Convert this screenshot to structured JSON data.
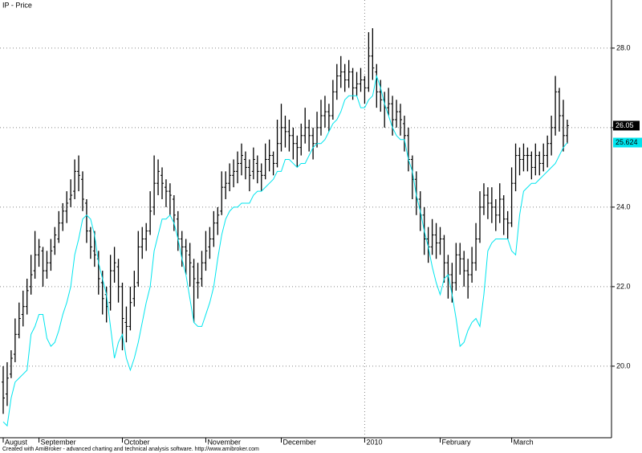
{
  "chart_data": {
    "type": "ohlc",
    "title": "IP - Price",
    "footer": "Created with AmiBroker - advanced charting and technical analysis software. http://www.amibroker.com",
    "bar_color": "#000000",
    "line_color": "#00e5ee",
    "grid": true,
    "ylim": [
      18.2,
      29.21
    ],
    "yticks": [
      {
        "value": 20,
        "label": "20.0"
      },
      {
        "value": 22,
        "label": "22.0"
      },
      {
        "value": 24,
        "label": "24.0"
      },
      {
        "value": 26,
        "label": "26.0"
      },
      {
        "value": 28,
        "label": "28.0"
      }
    ],
    "categories": [
      "August",
      null,
      null,
      null,
      null,
      null,
      null,
      null,
      null,
      "September",
      null,
      null,
      null,
      null,
      null,
      null,
      null,
      null,
      null,
      null,
      null,
      null,
      null,
      null,
      null,
      null,
      null,
      null,
      null,
      null,
      "October",
      null,
      null,
      null,
      null,
      null,
      null,
      null,
      null,
      null,
      null,
      null,
      null,
      null,
      null,
      null,
      null,
      null,
      null,
      null,
      null,
      "November",
      null,
      null,
      null,
      null,
      null,
      null,
      null,
      null,
      null,
      null,
      null,
      null,
      null,
      null,
      null,
      null,
      null,
      null,
      "December",
      null,
      null,
      null,
      null,
      null,
      null,
      null,
      null,
      null,
      null,
      null,
      null,
      null,
      null,
      null,
      null,
      null,
      null,
      null,
      null,
      "2010",
      null,
      null,
      null,
      null,
      null,
      null,
      null,
      null,
      null,
      null,
      null,
      null,
      null,
      null,
      null,
      null,
      null,
      null,
      "February",
      null,
      null,
      null,
      null,
      null,
      null,
      null,
      null,
      null,
      null,
      null,
      null,
      null,
      null,
      null,
      null,
      null,
      "March",
      null,
      null,
      null,
      null,
      null,
      null,
      null,
      null,
      null,
      null,
      null,
      null,
      null,
      null
    ],
    "bars": [
      [
        19.6,
        20.0,
        18.8,
        19.2
      ],
      [
        19.3,
        20.1,
        19.0,
        19.7
      ],
      [
        19.8,
        20.4,
        19.7,
        20.2
      ],
      [
        20.3,
        21.2,
        20.1,
        20.8
      ],
      [
        20.8,
        21.6,
        20.7,
        21.2
      ],
      [
        21.3,
        21.9,
        21.0,
        21.5
      ],
      [
        21.5,
        22.2,
        21.3,
        21.9
      ],
      [
        22.0,
        22.8,
        21.8,
        22.3
      ],
      [
        22.4,
        23.4,
        22.2,
        22.8
      ],
      [
        22.8,
        23.2,
        22.5,
        23.0
      ],
      [
        22.9,
        23.0,
        22.0,
        22.4
      ],
      [
        22.4,
        22.9,
        22.2,
        22.6
      ],
      [
        22.6,
        23.2,
        22.4,
        22.9
      ],
      [
        23.0,
        23.5,
        22.8,
        23.3
      ],
      [
        23.2,
        23.9,
        23.1,
        23.6
      ],
      [
        23.6,
        24.1,
        23.4,
        23.9
      ],
      [
        23.9,
        24.4,
        23.6,
        24.1
      ],
      [
        24.2,
        24.7,
        24.0,
        24.3
      ],
      [
        24.4,
        25.2,
        24.2,
        24.9
      ],
      [
        24.9,
        25.3,
        24.4,
        24.8
      ],
      [
        24.7,
        24.9,
        23.9,
        24.2
      ],
      [
        24.1,
        24.2,
        23.1,
        23.4
      ],
      [
        23.4,
        23.5,
        22.7,
        23.0
      ],
      [
        22.9,
        23.4,
        22.5,
        22.8
      ],
      [
        22.7,
        22.9,
        21.8,
        22.2
      ],
      [
        22.1,
        22.4,
        21.3,
        21.7
      ],
      [
        21.8,
        22.0,
        21.1,
        21.5
      ],
      [
        21.6,
        22.8,
        21.4,
        22.4
      ],
      [
        22.4,
        23.0,
        22.1,
        22.6
      ],
      [
        22.5,
        22.7,
        21.6,
        22.0
      ],
      [
        22.0,
        22.1,
        20.4,
        21.2
      ],
      [
        21.1,
        21.5,
        20.6,
        21.0
      ],
      [
        21.0,
        22.0,
        20.9,
        21.6
      ],
      [
        21.7,
        22.4,
        21.5,
        22.0
      ],
      [
        22.1,
        23.4,
        22.0,
        23.0
      ],
      [
        23.0,
        23.5,
        22.7,
        23.2
      ],
      [
        23.2,
        23.6,
        22.9,
        23.4
      ],
      [
        23.4,
        24.4,
        23.3,
        23.9
      ],
      [
        24.0,
        25.3,
        23.8,
        24.6
      ],
      [
        24.6,
        25.2,
        24.3,
        24.9
      ],
      [
        24.8,
        25.0,
        24.2,
        24.6
      ],
      [
        24.5,
        24.7,
        24.0,
        24.4
      ],
      [
        24.4,
        24.6,
        23.8,
        24.3
      ],
      [
        24.2,
        24.3,
        23.4,
        23.8
      ],
      [
        23.7,
        23.9,
        22.9,
        23.2
      ],
      [
        23.2,
        23.4,
        22.5,
        23.0
      ],
      [
        23.0,
        23.2,
        22.3,
        22.9
      ],
      [
        22.8,
        23.1,
        22.0,
        22.6
      ],
      [
        22.5,
        22.7,
        21.1,
        22.2
      ],
      [
        22.1,
        22.6,
        21.7,
        22.1
      ],
      [
        22.2,
        22.9,
        22.0,
        22.6
      ],
      [
        22.6,
        23.4,
        22.4,
        22.9
      ],
      [
        23.0,
        23.5,
        22.7,
        23.2
      ],
      [
        23.2,
        23.9,
        23.0,
        23.6
      ],
      [
        23.6,
        24.0,
        23.3,
        23.8
      ],
      [
        23.9,
        24.9,
        23.8,
        24.5
      ],
      [
        24.5,
        24.9,
        24.2,
        24.6
      ],
      [
        24.6,
        25.1,
        24.4,
        24.8
      ],
      [
        24.8,
        25.2,
        24.5,
        24.9
      ],
      [
        24.9,
        25.4,
        24.6,
        25.1
      ],
      [
        25.1,
        25.6,
        24.8,
        25.3
      ],
      [
        25.2,
        25.4,
        24.7,
        25.0
      ],
      [
        25.0,
        25.2,
        24.4,
        24.8
      ],
      [
        24.9,
        25.5,
        24.7,
        25.2
      ],
      [
        25.1,
        25.3,
        24.6,
        24.9
      ],
      [
        24.9,
        25.1,
        24.4,
        24.8
      ],
      [
        24.8,
        25.6,
        24.7,
        25.2
      ],
      [
        25.2,
        25.7,
        24.9,
        25.3
      ],
      [
        25.3,
        25.4,
        24.8,
        25.1
      ],
      [
        25.1,
        26.2,
        25.0,
        25.6
      ],
      [
        25.6,
        26.6,
        25.4,
        26.0
      ],
      [
        26.0,
        26.3,
        25.5,
        25.9
      ],
      [
        25.9,
        26.2,
        25.4,
        25.8
      ],
      [
        25.8,
        26.0,
        25.2,
        25.6
      ],
      [
        25.6,
        25.8,
        25.0,
        25.5
      ],
      [
        25.5,
        26.1,
        25.3,
        25.8
      ],
      [
        25.8,
        26.5,
        25.6,
        26.0
      ],
      [
        26.0,
        26.2,
        25.4,
        25.8
      ],
      [
        25.8,
        26.0,
        25.2,
        25.6
      ],
      [
        25.6,
        26.4,
        25.5,
        26.0
      ],
      [
        26.0,
        26.7,
        25.8,
        26.3
      ],
      [
        26.3,
        26.8,
        26.0,
        26.4
      ],
      [
        26.4,
        26.6,
        25.9,
        26.3
      ],
      [
        26.3,
        27.2,
        26.2,
        26.9
      ],
      [
        26.9,
        27.6,
        26.7,
        27.3
      ],
      [
        27.3,
        27.8,
        27.0,
        27.4
      ],
      [
        27.4,
        27.6,
        26.9,
        27.2
      ],
      [
        27.2,
        27.7,
        27.0,
        27.4
      ],
      [
        27.4,
        27.5,
        26.7,
        27.0
      ],
      [
        27.0,
        27.4,
        26.8,
        27.1
      ],
      [
        27.1,
        27.5,
        26.9,
        27.2
      ],
      [
        27.2,
        27.3,
        26.6,
        27.0
      ],
      [
        27.0,
        28.4,
        26.9,
        27.8
      ],
      [
        27.8,
        28.5,
        27.2,
        27.5
      ],
      [
        27.4,
        27.6,
        26.5,
        26.9
      ],
      [
        26.9,
        27.2,
        26.4,
        26.7
      ],
      [
        26.7,
        26.9,
        26.0,
        26.5
      ],
      [
        26.5,
        27.0,
        26.3,
        26.6
      ],
      [
        26.6,
        26.8,
        25.8,
        26.2
      ],
      [
        26.2,
        26.7,
        26.0,
        26.4
      ],
      [
        26.4,
        26.6,
        25.8,
        26.2
      ],
      [
        26.1,
        26.3,
        25.4,
        25.8
      ],
      [
        25.8,
        26.0,
        24.9,
        25.2
      ],
      [
        25.2,
        25.3,
        24.2,
        24.7
      ],
      [
        24.7,
        24.9,
        23.8,
        24.2
      ],
      [
        24.2,
        24.4,
        23.4,
        23.8
      ],
      [
        23.8,
        24.0,
        22.8,
        23.2
      ],
      [
        23.2,
        23.5,
        22.6,
        23.0
      ],
      [
        23.0,
        23.7,
        22.8,
        23.3
      ],
      [
        23.3,
        23.6,
        22.7,
        23.1
      ],
      [
        23.1,
        23.5,
        22.8,
        23.2
      ],
      [
        23.2,
        23.3,
        22.1,
        22.6
      ],
      [
        22.6,
        22.8,
        21.7,
        22.3
      ],
      [
        22.3,
        22.6,
        21.6,
        22.1
      ],
      [
        22.1,
        23.1,
        21.9,
        22.8
      ],
      [
        22.8,
        23.1,
        22.3,
        22.7
      ],
      [
        22.7,
        22.9,
        22.0,
        22.4
      ],
      [
        22.4,
        22.7,
        21.7,
        22.3
      ],
      [
        22.3,
        23.0,
        22.1,
        22.6
      ],
      [
        22.6,
        23.6,
        22.4,
        23.2
      ],
      [
        23.2,
        24.4,
        23.1,
        24.0
      ],
      [
        24.0,
        24.6,
        23.8,
        24.3
      ],
      [
        24.3,
        24.5,
        23.7,
        24.1
      ],
      [
        24.1,
        24.5,
        23.6,
        24.0
      ],
      [
        24.0,
        24.2,
        23.4,
        23.8
      ],
      [
        23.8,
        24.6,
        23.6,
        24.2
      ],
      [
        24.2,
        24.3,
        23.3,
        23.7
      ],
      [
        23.7,
        23.9,
        23.2,
        23.6
      ],
      [
        23.6,
        25.0,
        23.5,
        24.6
      ],
      [
        24.6,
        25.6,
        24.4,
        25.3
      ],
      [
        25.3,
        25.5,
        24.8,
        25.2
      ],
      [
        25.2,
        25.6,
        24.9,
        25.3
      ],
      [
        25.3,
        25.5,
        24.9,
        25.3
      ],
      [
        25.3,
        25.4,
        24.7,
        25.0
      ],
      [
        25.0,
        25.6,
        24.8,
        25.3
      ],
      [
        25.3,
        25.4,
        24.8,
        25.1
      ],
      [
        25.1,
        25.6,
        24.9,
        25.3
      ],
      [
        25.3,
        25.8,
        25.0,
        25.6
      ],
      [
        25.6,
        26.3,
        25.3,
        26.0
      ],
      [
        26.0,
        27.3,
        25.8,
        26.9
      ],
      [
        26.9,
        27.0,
        25.9,
        26.3
      ],
      [
        26.3,
        26.7,
        25.4,
        25.8
      ],
      [
        25.8,
        26.2,
        25.6,
        26.05
      ]
    ],
    "line": [
      18.6,
      18.5,
      19.2,
      19.6,
      19.7,
      19.8,
      19.9,
      20.8,
      21.0,
      21.3,
      21.3,
      20.7,
      20.5,
      20.6,
      20.9,
      21.3,
      21.6,
      22.0,
      22.8,
      23.2,
      23.7,
      23.8,
      23.7,
      23.3,
      22.6,
      22.2,
      21.8,
      21.0,
      20.2,
      20.6,
      20.8,
      20.2,
      19.9,
      20.2,
      20.6,
      21.1,
      21.6,
      22.0,
      22.9,
      23.3,
      23.7,
      23.7,
      23.8,
      23.6,
      23.2,
      22.7,
      22.3,
      21.7,
      21.1,
      21.0,
      21.0,
      21.3,
      21.6,
      22.0,
      22.7,
      23.3,
      23.7,
      23.9,
      24.0,
      24.0,
      24.1,
      24.1,
      24.1,
      24.3,
      24.4,
      24.4,
      24.5,
      24.6,
      24.7,
      24.9,
      24.9,
      25.2,
      25.2,
      25.1,
      25.0,
      25.1,
      25.1,
      25.3,
      25.5,
      25.6,
      25.6,
      25.7,
      25.9,
      26.1,
      26.2,
      26.4,
      26.7,
      26.8,
      26.8,
      26.8,
      26.5,
      26.5,
      26.7,
      26.8,
      27.3,
      27.0,
      26.6,
      26.3,
      26.0,
      25.8,
      25.7,
      25.7,
      25.2,
      24.9,
      24.3,
      23.9,
      23.4,
      23.0,
      22.5,
      22.1,
      21.8,
      22.2,
      22.3,
      21.8,
      21.2,
      20.5,
      20.6,
      20.9,
      21.1,
      21.2,
      21.0,
      21.8,
      22.9,
      23.1,
      23.2,
      23.2,
      23.2,
      23.2,
      22.9,
      22.8,
      23.8,
      24.4,
      24.5,
      24.6,
      24.6,
      24.7,
      24.8,
      24.9,
      25.0,
      25.1,
      25.3,
      25.5,
      25.624
    ]
  }
}
